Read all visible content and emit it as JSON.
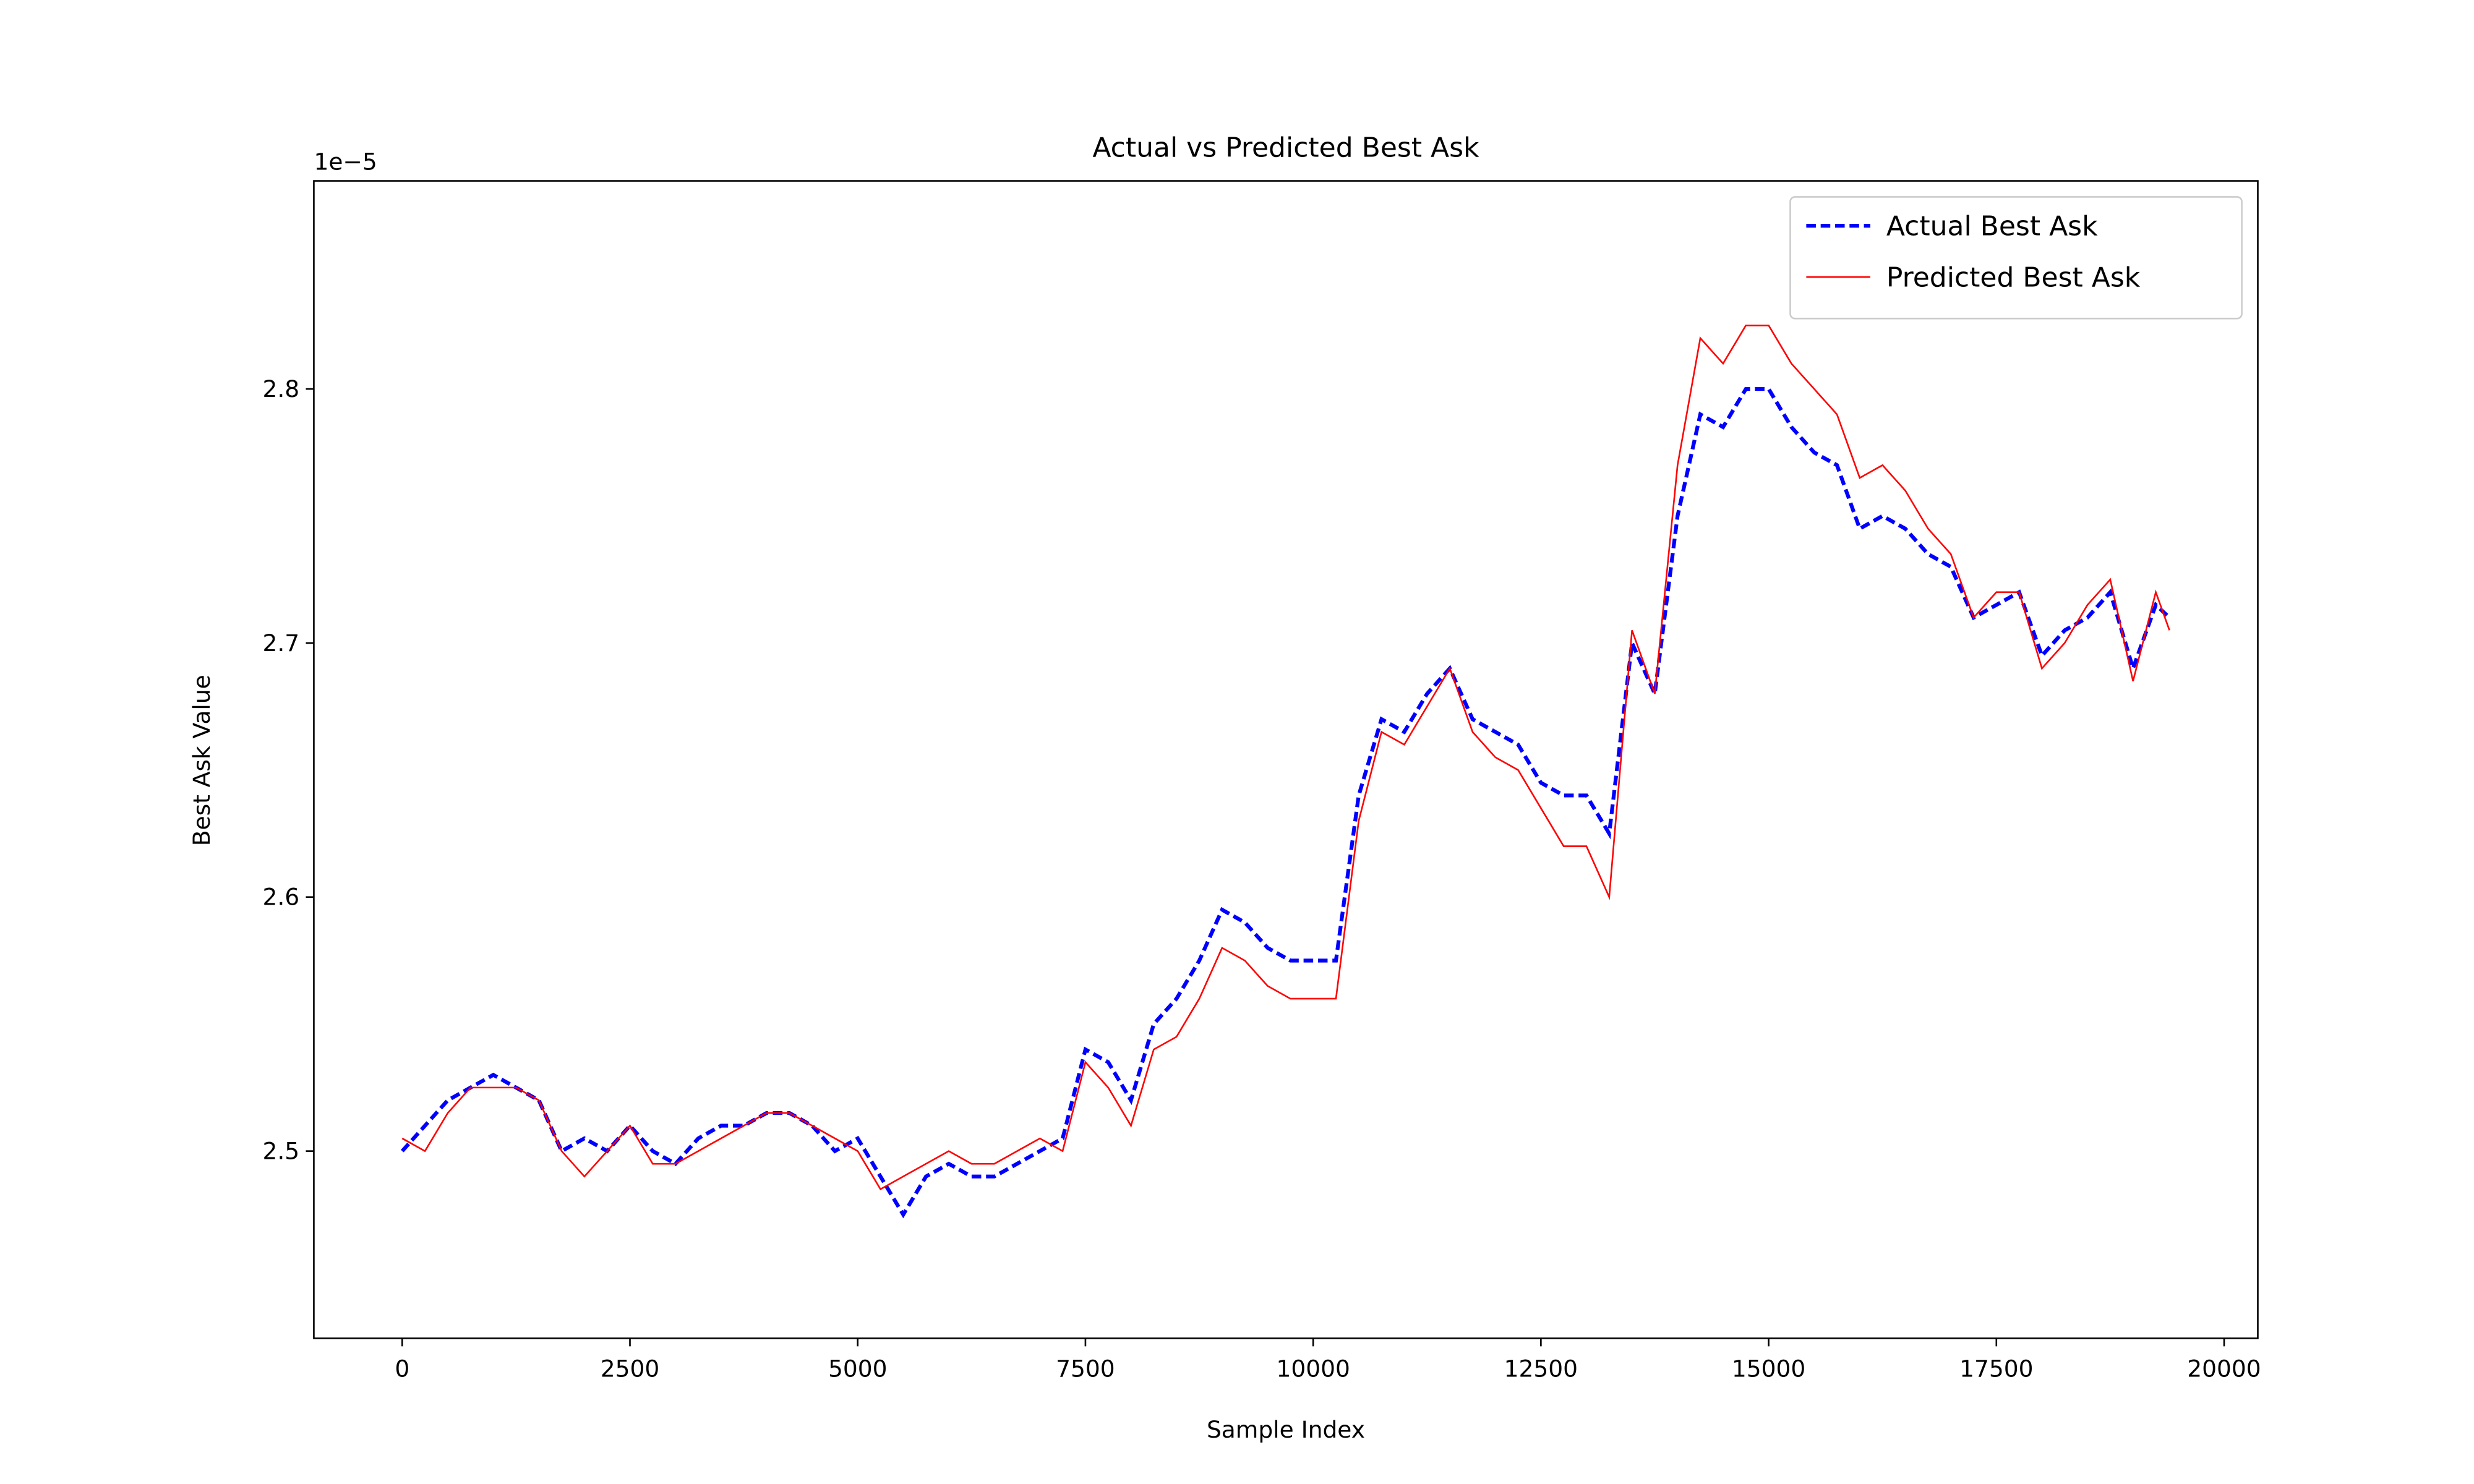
{
  "chart_data": {
    "type": "line",
    "title": "Actual vs Predicted Best Ask",
    "xlabel": "Sample Index",
    "ylabel": "Best Ask Value",
    "y_offset_label": "1e−5",
    "x": [
      0,
      250,
      500,
      750,
      1000,
      1250,
      1500,
      1750,
      2000,
      2250,
      2500,
      2750,
      3000,
      3250,
      3500,
      3750,
      4000,
      4250,
      4500,
      4750,
      5000,
      5250,
      5500,
      5750,
      6000,
      6250,
      6500,
      6750,
      7000,
      7250,
      7500,
      7750,
      8000,
      8250,
      8500,
      8750,
      9000,
      9250,
      9500,
      9750,
      10000,
      10250,
      10500,
      10750,
      11000,
      11250,
      11500,
      11750,
      12000,
      12250,
      12500,
      12750,
      13000,
      13250,
      13500,
      13750,
      14000,
      14250,
      14500,
      14750,
      15000,
      15250,
      15500,
      15750,
      16000,
      16250,
      16500,
      16750,
      17000,
      17250,
      17500,
      17750,
      18000,
      18250,
      18500,
      18750,
      19000,
      19250,
      19400
    ],
    "series": [
      {
        "name": "Actual Best Ask",
        "color": "blue",
        "dashed": true,
        "values": [
          2.5,
          2.51,
          2.52,
          2.525,
          2.53,
          2.525,
          2.52,
          2.5,
          2.505,
          2.5,
          2.51,
          2.5,
          2.495,
          2.505,
          2.51,
          2.51,
          2.515,
          2.515,
          2.51,
          2.5,
          2.505,
          2.49,
          2.475,
          2.49,
          2.495,
          2.49,
          2.49,
          2.495,
          2.5,
          2.505,
          2.54,
          2.535,
          2.52,
          2.55,
          2.56,
          2.575,
          2.595,
          2.59,
          2.58,
          2.575,
          2.575,
          2.575,
          2.64,
          2.67,
          2.665,
          2.68,
          2.69,
          2.67,
          2.665,
          2.66,
          2.645,
          2.64,
          2.64,
          2.625,
          2.7,
          2.68,
          2.75,
          2.79,
          2.785,
          2.8,
          2.8,
          2.785,
          2.775,
          2.77,
          2.745,
          2.75,
          2.745,
          2.735,
          2.73,
          2.71,
          2.715,
          2.72,
          2.695,
          2.705,
          2.71,
          2.72,
          2.69,
          2.715,
          2.71
        ]
      },
      {
        "name": "Predicted Best Ask",
        "color": "red",
        "dashed": false,
        "values": [
          2.505,
          2.5,
          2.515,
          2.525,
          2.525,
          2.525,
          2.52,
          2.5,
          2.49,
          2.5,
          2.51,
          2.495,
          2.495,
          2.5,
          2.505,
          2.51,
          2.515,
          2.515,
          2.51,
          2.505,
          2.5,
          2.485,
          2.49,
          2.495,
          2.5,
          2.495,
          2.495,
          2.5,
          2.505,
          2.5,
          2.535,
          2.525,
          2.51,
          2.54,
          2.545,
          2.56,
          2.58,
          2.575,
          2.565,
          2.56,
          2.56,
          2.56,
          2.63,
          2.665,
          2.66,
          2.675,
          2.69,
          2.665,
          2.655,
          2.65,
          2.635,
          2.62,
          2.62,
          2.6,
          2.705,
          2.68,
          2.77,
          2.82,
          2.81,
          2.825,
          2.825,
          2.81,
          2.8,
          2.79,
          2.765,
          2.77,
          2.76,
          2.745,
          2.735,
          2.71,
          2.72,
          2.72,
          2.69,
          2.7,
          2.715,
          2.725,
          2.685,
          2.72,
          2.705
        ]
      }
    ],
    "xlim": [
      -970,
      20370
    ],
    "ylim": [
      2.4263,
      2.8819
    ],
    "xticks": [
      0,
      2500,
      5000,
      7500,
      10000,
      12500,
      15000,
      17500,
      20000
    ],
    "yticks": [
      2.5,
      2.6,
      2.7,
      2.8
    ],
    "legend": "upper right",
    "grid": false
  }
}
